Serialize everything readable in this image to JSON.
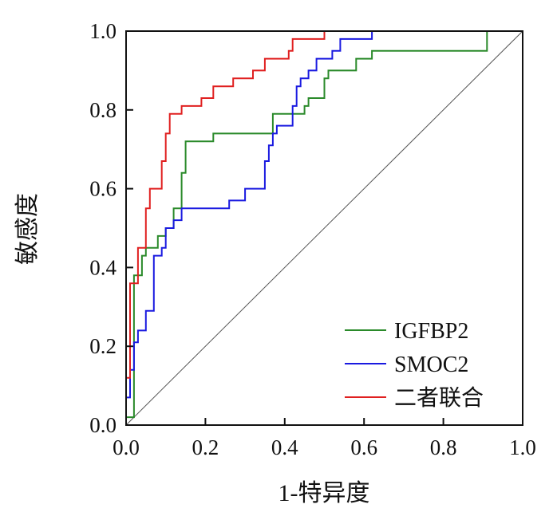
{
  "chart_data": {
    "type": "line",
    "title": "",
    "xlabel": "1-特异度",
    "ylabel": "敏感度",
    "xlim": [
      0,
      1
    ],
    "ylim": [
      0,
      1
    ],
    "x_ticks": [
      "0.0",
      "0.2",
      "0.4",
      "0.6",
      "0.8",
      "1.0"
    ],
    "y_ticks": [
      "0.0",
      "0.2",
      "0.4",
      "0.6",
      "0.8",
      "1.0"
    ],
    "grid": false,
    "legend_position": "bottom-right",
    "diagonal_reference": true,
    "colors": {
      "IGFBP2": "#2a8a2a",
      "SMOC2": "#1a1ae0",
      "二者联合": "#e02020",
      "diagonal": "#555555"
    },
    "series": [
      {
        "name": "IGFBP2",
        "points": [
          [
            0,
            0.02
          ],
          [
            0.02,
            0.02
          ],
          [
            0.02,
            0.38
          ],
          [
            0.04,
            0.38
          ],
          [
            0.04,
            0.43
          ],
          [
            0.05,
            0.43
          ],
          [
            0.05,
            0.45
          ],
          [
            0.08,
            0.45
          ],
          [
            0.08,
            0.48
          ],
          [
            0.1,
            0.48
          ],
          [
            0.1,
            0.5
          ],
          [
            0.12,
            0.5
          ],
          [
            0.12,
            0.55
          ],
          [
            0.14,
            0.55
          ],
          [
            0.14,
            0.64
          ],
          [
            0.15,
            0.64
          ],
          [
            0.15,
            0.72
          ],
          [
            0.22,
            0.72
          ],
          [
            0.22,
            0.74
          ],
          [
            0.37,
            0.74
          ],
          [
            0.37,
            0.79
          ],
          [
            0.45,
            0.79
          ],
          [
            0.45,
            0.81
          ],
          [
            0.46,
            0.81
          ],
          [
            0.46,
            0.83
          ],
          [
            0.5,
            0.83
          ],
          [
            0.5,
            0.88
          ],
          [
            0.51,
            0.88
          ],
          [
            0.51,
            0.9
          ],
          [
            0.58,
            0.9
          ],
          [
            0.58,
            0.93
          ],
          [
            0.62,
            0.93
          ],
          [
            0.62,
            0.95
          ],
          [
            0.91,
            0.95
          ],
          [
            0.91,
            1.0
          ]
        ]
      },
      {
        "name": "SMOC2",
        "points": [
          [
            0,
            0.07
          ],
          [
            0.01,
            0.07
          ],
          [
            0.01,
            0.14
          ],
          [
            0.02,
            0.14
          ],
          [
            0.02,
            0.21
          ],
          [
            0.03,
            0.21
          ],
          [
            0.03,
            0.24
          ],
          [
            0.05,
            0.24
          ],
          [
            0.05,
            0.29
          ],
          [
            0.07,
            0.29
          ],
          [
            0.07,
            0.43
          ],
          [
            0.09,
            0.43
          ],
          [
            0.09,
            0.45
          ],
          [
            0.1,
            0.45
          ],
          [
            0.1,
            0.5
          ],
          [
            0.12,
            0.5
          ],
          [
            0.12,
            0.52
          ],
          [
            0.14,
            0.52
          ],
          [
            0.14,
            0.55
          ],
          [
            0.26,
            0.55
          ],
          [
            0.26,
            0.57
          ],
          [
            0.3,
            0.57
          ],
          [
            0.3,
            0.6
          ],
          [
            0.35,
            0.6
          ],
          [
            0.35,
            0.67
          ],
          [
            0.36,
            0.67
          ],
          [
            0.36,
            0.71
          ],
          [
            0.37,
            0.71
          ],
          [
            0.37,
            0.74
          ],
          [
            0.38,
            0.74
          ],
          [
            0.38,
            0.76
          ],
          [
            0.42,
            0.76
          ],
          [
            0.42,
            0.81
          ],
          [
            0.43,
            0.81
          ],
          [
            0.43,
            0.86
          ],
          [
            0.44,
            0.86
          ],
          [
            0.44,
            0.88
          ],
          [
            0.46,
            0.88
          ],
          [
            0.46,
            0.9
          ],
          [
            0.48,
            0.9
          ],
          [
            0.48,
            0.93
          ],
          [
            0.52,
            0.93
          ],
          [
            0.52,
            0.95
          ],
          [
            0.54,
            0.95
          ],
          [
            0.54,
            0.98
          ],
          [
            0.62,
            0.98
          ],
          [
            0.62,
            1.0
          ]
        ]
      },
      {
        "name": "二者联合",
        "points": [
          [
            0,
            0.12
          ],
          [
            0.01,
            0.12
          ],
          [
            0.01,
            0.36
          ],
          [
            0.03,
            0.36
          ],
          [
            0.03,
            0.45
          ],
          [
            0.05,
            0.45
          ],
          [
            0.05,
            0.55
          ],
          [
            0.06,
            0.55
          ],
          [
            0.06,
            0.6
          ],
          [
            0.09,
            0.6
          ],
          [
            0.09,
            0.67
          ],
          [
            0.1,
            0.67
          ],
          [
            0.1,
            0.74
          ],
          [
            0.11,
            0.74
          ],
          [
            0.11,
            0.79
          ],
          [
            0.14,
            0.79
          ],
          [
            0.14,
            0.81
          ],
          [
            0.19,
            0.81
          ],
          [
            0.19,
            0.83
          ],
          [
            0.22,
            0.83
          ],
          [
            0.22,
            0.86
          ],
          [
            0.27,
            0.86
          ],
          [
            0.27,
            0.88
          ],
          [
            0.32,
            0.88
          ],
          [
            0.32,
            0.9
          ],
          [
            0.35,
            0.9
          ],
          [
            0.35,
            0.93
          ],
          [
            0.41,
            0.93
          ],
          [
            0.41,
            0.95
          ],
          [
            0.42,
            0.95
          ],
          [
            0.42,
            0.98
          ],
          [
            0.5,
            0.98
          ],
          [
            0.5,
            1.0
          ]
        ]
      }
    ]
  }
}
